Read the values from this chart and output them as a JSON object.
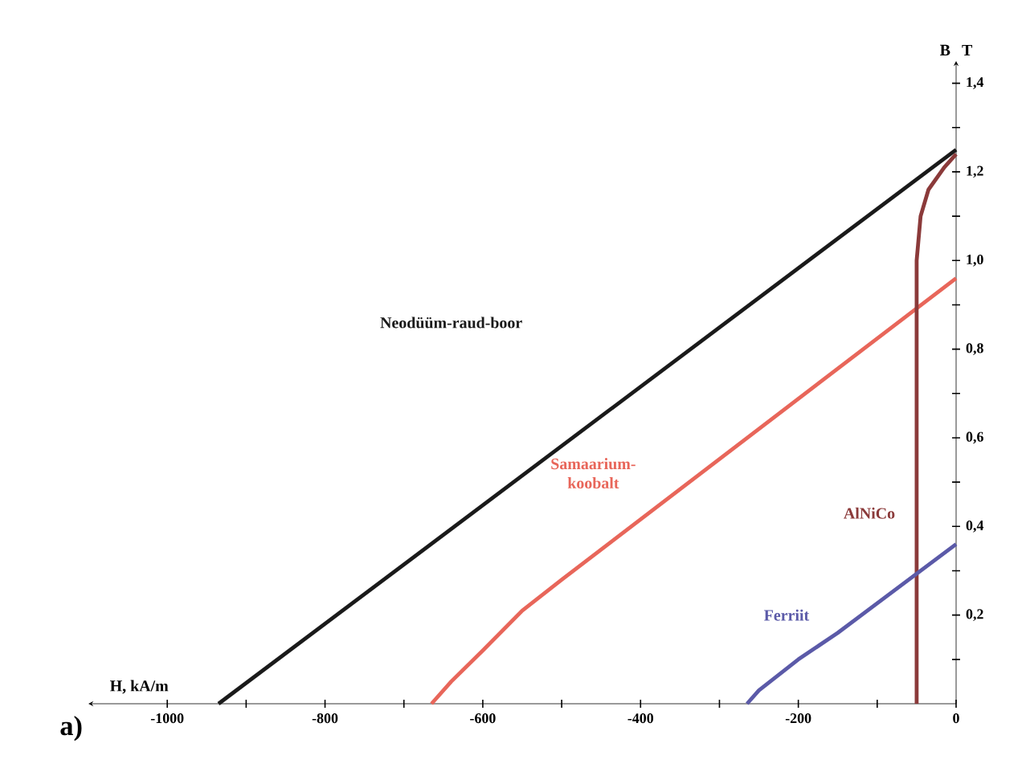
{
  "chart_data": {
    "type": "line",
    "xlabel": "H, kA/m",
    "ylabel": "B",
    "annotations": [
      "T",
      "a)"
    ],
    "xlim": [
      -1100,
      0
    ],
    "ylim": [
      0,
      1.45
    ],
    "xticks": [
      -1000,
      {
        "value": -900,
        "label": null
      },
      -800,
      {
        "value": -700,
        "label": null
      },
      -600,
      {
        "value": -500,
        "label": null
      },
      -400,
      {
        "value": -300,
        "label": null
      },
      -200,
      {
        "value": -100,
        "label": null
      },
      0
    ],
    "yticks": [
      {
        "value": 0.1,
        "label": null
      },
      {
        "value": 0.2,
        "label": "0,2"
      },
      {
        "value": 0.3,
        "label": null
      },
      {
        "value": 0.4,
        "label": "0,4"
      },
      {
        "value": 0.5,
        "label": null
      },
      {
        "value": 0.6,
        "label": "0,6"
      },
      {
        "value": 0.7,
        "label": null
      },
      {
        "value": 0.8,
        "label": "0,8"
      },
      {
        "value": 0.9,
        "label": null
      },
      {
        "value": 1.0,
        "label": "1,0"
      },
      {
        "value": 1.1,
        "label": null
      },
      {
        "value": 1.2,
        "label": "1,2"
      },
      {
        "value": 1.3,
        "label": null
      },
      {
        "value": 1.4,
        "label": "1,4"
      }
    ],
    "grid": false,
    "legend": false,
    "marker": "none",
    "line_style": "solid",
    "series": [
      {
        "name": "Neodüüm-raud-boor",
        "color": "#1a1a1a",
        "x": [
          -935,
          0
        ],
        "values": [
          0,
          1.25
        ]
      },
      {
        "name": "Samaarium-koobalt",
        "color": "#e8665a",
        "x": [
          -665,
          -640,
          -600,
          -550,
          -500,
          0
        ],
        "values": [
          0,
          0.05,
          0.12,
          0.21,
          0.28,
          0.96
        ]
      },
      {
        "name": "AlNiCo",
        "color": "#8b3a3a",
        "x": [
          -50,
          -50,
          -45,
          -35,
          -15,
          0
        ],
        "values": [
          0,
          1.0,
          1.1,
          1.16,
          1.21,
          1.24
        ]
      },
      {
        "name": "Ferriit",
        "color": "#5b5aa8",
        "x": [
          -265,
          -250,
          -200,
          -150,
          0
        ],
        "values": [
          0,
          0.03,
          0.1,
          0.16,
          0.36
        ]
      }
    ]
  }
}
